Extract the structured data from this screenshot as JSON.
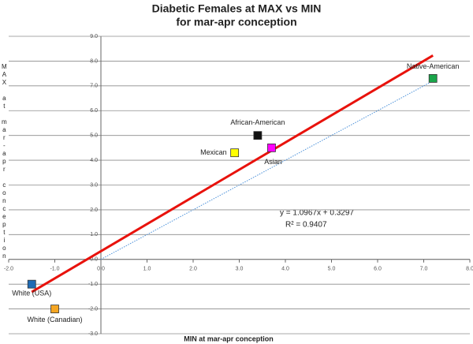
{
  "chart_data": {
    "type": "scatter",
    "title": "Diabetic Females at MAX vs MIN",
    "subtitle": "for mar-apr conception",
    "x_label": "MIN at mar-apr conception",
    "y_label": "MAX at mar-apr conception",
    "xlim": [
      -2,
      8
    ],
    "ylim": [
      -3,
      9
    ],
    "xticks": [
      {
        "value": -2,
        "label": "-2.0"
      },
      {
        "value": -1,
        "label": "-1.0"
      },
      {
        "value": 0,
        "label": "0.0"
      },
      {
        "value": 1,
        "label": "1.0"
      },
      {
        "value": 2,
        "label": "2.0"
      },
      {
        "value": 3,
        "label": "3.0"
      },
      {
        "value": 4,
        "label": "4.0"
      },
      {
        "value": 5,
        "label": "5.0"
      },
      {
        "value": 6,
        "label": "6.0"
      },
      {
        "value": 7,
        "label": "7.0"
      },
      {
        "value": 8,
        "label": "8.0"
      }
    ],
    "yticks": [
      {
        "value": -3,
        "label": "-3.0"
      },
      {
        "value": -2,
        "label": "-2.0"
      },
      {
        "value": -1,
        "label": "-1.0"
      },
      {
        "value": 0,
        "label": "0.0"
      },
      {
        "value": 1,
        "label": "1.0"
      },
      {
        "value": 2,
        "label": "2.0"
      },
      {
        "value": 3,
        "label": "3.0"
      },
      {
        "value": 4,
        "label": "4.0"
      },
      {
        "value": 5,
        "label": "5.0"
      },
      {
        "value": 6,
        "label": "6.0"
      },
      {
        "value": 7,
        "label": "7.0"
      },
      {
        "value": 8,
        "label": "8.0"
      },
      {
        "value": 9,
        "label": "9.0"
      }
    ],
    "grid": true,
    "points": [
      {
        "label": "White (USA)",
        "x": -1.5,
        "y": -1.0,
        "color": "#1f6bb5"
      },
      {
        "label": "White (Canadian)",
        "x": -1.0,
        "y": -2.0,
        "color": "#f5a623"
      },
      {
        "label": "Mexican",
        "x": 2.9,
        "y": 4.3,
        "color": "#ffff00"
      },
      {
        "label": "African-American",
        "x": 3.4,
        "y": 5.0,
        "color": "#111111"
      },
      {
        "label": "Asian",
        "x": 3.7,
        "y": 4.5,
        "color": "#ff00ff"
      },
      {
        "label": "Native-American",
        "x": 7.2,
        "y": 7.3,
        "color": "#1aa64a"
      }
    ],
    "trendline": {
      "x": [
        -1.5,
        7.2
      ],
      "slope": 1.0967,
      "intercept": 0.3297,
      "color": "#e8120c"
    },
    "reference_line": {
      "x": [
        0,
        7.2
      ],
      "y": [
        0,
        7.2
      ],
      "color": "#4a90d9"
    },
    "annotations": [
      "y = 1.0967x + 0.3297",
      "R² = 0.9407"
    ]
  }
}
